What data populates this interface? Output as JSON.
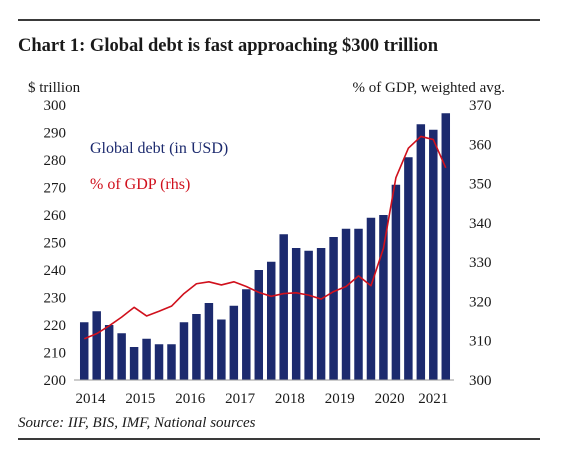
{
  "title": "Chart 1: Global debt is fast approaching $300 trillion",
  "source": "Source: IIF, BIS, IMF, National sources",
  "colors": {
    "bars": "#1c2a6e",
    "line": "#d0101c",
    "legend_bars_text": "#1c2a6e",
    "legend_line_text": "#d0101c",
    "axis_text": "#1a1a1a",
    "rule": "#3a3a3a"
  },
  "chart_data": {
    "type": "bar+line",
    "ylabel_left": "$ trillion",
    "ylabel_right": "% of GDP, weighted avg.",
    "ylim_left": [
      200,
      300
    ],
    "yticks_left": [
      200,
      210,
      220,
      230,
      240,
      250,
      260,
      270,
      280,
      290,
      300
    ],
    "ylim_right": [
      300,
      370
    ],
    "yticks_right": [
      300,
      310,
      320,
      330,
      340,
      350,
      360,
      370
    ],
    "x_tick_labels": [
      "2014",
      "2015",
      "2016",
      "2017",
      "2018",
      "2019",
      "2020",
      "2021"
    ],
    "grid": false,
    "legend_placement": "upper-left inside plot",
    "series": [
      {
        "name": "Global debt (in USD)",
        "kind": "bar",
        "axis": "left",
        "x": [
          "2014Q1",
          "2014Q2",
          "2014Q3",
          "2014Q4",
          "2015Q1",
          "2015Q2",
          "2015Q3",
          "2015Q4",
          "2016Q1",
          "2016Q2",
          "2016Q3",
          "2016Q4",
          "2017Q1",
          "2017Q2",
          "2017Q3",
          "2017Q4",
          "2018Q1",
          "2018Q2",
          "2018Q3",
          "2018Q4",
          "2019Q1",
          "2019Q2",
          "2019Q3",
          "2019Q4",
          "2020Q1",
          "2020Q2",
          "2020Q3",
          "2020Q4",
          "2021Q1",
          "2021Q2"
        ],
        "values": [
          221,
          225,
          220,
          217,
          212,
          215,
          213,
          213,
          221,
          224,
          228,
          222,
          227,
          233,
          240,
          243,
          253,
          248,
          247,
          248,
          252,
          255,
          255,
          259,
          260,
          271,
          281,
          293,
          291,
          297
        ]
      },
      {
        "name": "% of GDP (rhs)",
        "kind": "line",
        "axis": "right",
        "x": [
          "2014Q1",
          "2014Q2",
          "2014Q3",
          "2014Q4",
          "2015Q1",
          "2015Q2",
          "2015Q3",
          "2015Q4",
          "2016Q1",
          "2016Q2",
          "2016Q3",
          "2016Q4",
          "2017Q1",
          "2017Q2",
          "2017Q3",
          "2017Q4",
          "2018Q1",
          "2018Q2",
          "2018Q3",
          "2018Q4",
          "2019Q1",
          "2019Q2",
          "2019Q3",
          "2019Q4",
          "2020Q1",
          "2020Q2",
          "2020Q3",
          "2020Q4",
          "2021Q1",
          "2021Q2"
        ],
        "values": [
          310.5,
          311.8,
          313.8,
          316.0,
          318.5,
          316.3,
          317.5,
          318.8,
          322.0,
          324.5,
          325.0,
          324.2,
          325.0,
          323.8,
          322.3,
          321.3,
          322.0,
          322.2,
          321.6,
          320.6,
          322.5,
          323.8,
          326.5,
          324.0,
          333.5,
          351.5,
          359.0,
          362.0,
          361.2,
          354.0
        ]
      }
    ]
  }
}
